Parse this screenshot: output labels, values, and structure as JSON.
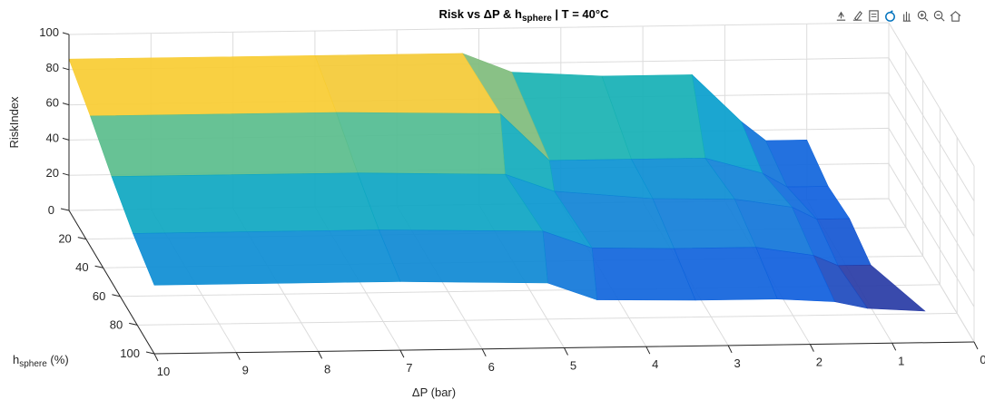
{
  "chart_data": {
    "type": "surface",
    "title": {
      "prefix": "Risk  vs  ΔP  &  h",
      "subscript": "sphere",
      "suffix": "   |   T  =  40°C"
    },
    "xlabel": "ΔP  (bar)",
    "ylabel": {
      "main": "h",
      "subscript": "sphere",
      "unit": "  (%)"
    },
    "zlabel": "RiskIndex",
    "x_ticks": [
      "10",
      "9",
      "8",
      "7",
      "6",
      "5",
      "4",
      "3",
      "2",
      "1",
      "0"
    ],
    "y_ticks": [
      "0",
      "20",
      "40",
      "60",
      "80",
      "100"
    ],
    "z_ticks": [
      "20",
      "40",
      "60",
      "80",
      "100"
    ],
    "xlim": [
      10,
      0
    ],
    "ylim": [
      0,
      100
    ],
    "zlim": [
      0,
      100
    ],
    "grid": true,
    "colormap": "parula",
    "surface_rows": [
      {
        "h": 0,
        "dp": [
          10,
          7,
          5.2,
          4.6,
          3.5,
          2.4,
          1.8,
          1.5,
          1.0
        ],
        "risk": [
          86,
          86,
          86,
          75,
          72,
          72,
          45,
          34,
          34
        ]
      },
      {
        "h": 25,
        "dp": [
          10,
          7,
          5.0,
          4.4,
          3.4,
          2.5,
          1.8,
          1.5,
          1.0
        ],
        "risk": [
          74,
          74,
          72,
          45,
          45,
          45,
          36,
          28,
          28
        ]
      },
      {
        "h": 50,
        "dp": [
          10,
          7,
          5.2,
          4.6,
          3.4,
          2.4,
          1.7,
          1.4,
          1.0
        ],
        "risk": [
          60,
          60,
          58,
          48,
          43,
          42,
          37,
          30,
          30
        ]
      },
      {
        "h": 75,
        "dp": [
          10,
          7,
          5.0,
          4.4,
          3.4,
          2.4,
          1.7,
          1.4,
          1.0
        ],
        "risk": [
          48,
          48,
          46,
          36,
          35,
          35,
          30,
          24,
          24
        ]
      },
      {
        "h": 100,
        "dp": [
          10,
          7,
          5.2,
          4.6,
          3.4,
          2.4,
          1.7,
          1.3,
          0.6
        ],
        "risk": [
          39,
          39,
          37,
          27,
          26,
          26,
          24,
          20,
          18
        ]
      }
    ]
  },
  "toolbar": {
    "buttons": [
      {
        "name": "export-icon"
      },
      {
        "name": "brush-icon"
      },
      {
        "name": "data-tips-icon"
      },
      {
        "name": "rotate-icon"
      },
      {
        "name": "pan-icon"
      },
      {
        "name": "zoom-in-icon"
      },
      {
        "name": "zoom-out-icon"
      },
      {
        "name": "home-icon"
      }
    ],
    "active_color": "#0072bd"
  }
}
